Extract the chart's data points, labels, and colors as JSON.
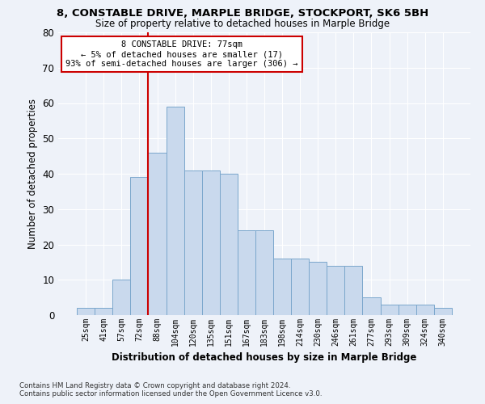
{
  "title_line1": "8, CONSTABLE DRIVE, MARPLE BRIDGE, STOCKPORT, SK6 5BH",
  "title_line2": "Size of property relative to detached houses in Marple Bridge",
  "xlabel": "Distribution of detached houses by size in Marple Bridge",
  "ylabel": "Number of detached properties",
  "categories": [
    "25sqm",
    "41sqm",
    "57sqm",
    "72sqm",
    "88sqm",
    "104sqm",
    "120sqm",
    "135sqm",
    "151sqm",
    "167sqm",
    "183sqm",
    "198sqm",
    "214sqm",
    "230sqm",
    "246sqm",
    "261sqm",
    "277sqm",
    "293sqm",
    "309sqm",
    "324sqm",
    "340sqm"
  ],
  "values": [
    2,
    2,
    10,
    39,
    46,
    59,
    41,
    41,
    40,
    24,
    24,
    16,
    16,
    15,
    14,
    14,
    5,
    3,
    3,
    3,
    2
  ],
  "bar_color": "#c9d9ed",
  "bar_edge_color": "#7ba7cc",
  "vline_color": "#cc0000",
  "vline_x": 3.5,
  "annotation_text": "8 CONSTABLE DRIVE: 77sqm\n← 5% of detached houses are smaller (17)\n93% of semi-detached houses are larger (306) →",
  "annotation_box_color": "#ffffff",
  "annotation_border_color": "#cc0000",
  "ylim": [
    0,
    80
  ],
  "yticks": [
    0,
    10,
    20,
    30,
    40,
    50,
    60,
    70,
    80
  ],
  "background_color": "#eef2f9",
  "grid_color": "#ffffff",
  "footer": "Contains HM Land Registry data © Crown copyright and database right 2024.\nContains public sector information licensed under the Open Government Licence v3.0."
}
